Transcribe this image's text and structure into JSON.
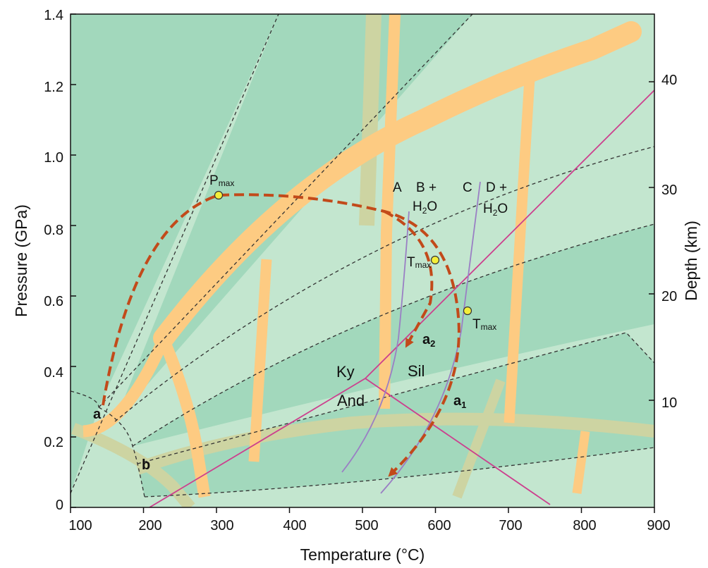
{
  "axes": {
    "x_title": "Temperature (°C)",
    "y_title": "Pressure (GPa)",
    "y2_title": "Depth (km)",
    "x_ticks": [
      "100",
      "200",
      "300",
      "400",
      "500",
      "600",
      "700",
      "800",
      "900"
    ],
    "y_ticks": [
      "0",
      "0.2",
      "0.4",
      "0.6",
      "0.8",
      "1.0",
      "1.2",
      "1.4"
    ],
    "y2_ticks": [
      "10",
      "20",
      "30",
      "40"
    ],
    "x_range": [
      100,
      900
    ],
    "y_range": [
      0,
      1.4
    ]
  },
  "labels": {
    "pmax_main": "P",
    "pmax_sub": "max",
    "tmax_main": "T",
    "tmax_sub": "max",
    "path_a": "a",
    "path_b": "b",
    "path_a1_main": "a",
    "path_a1_sub": "1",
    "path_a2_main": "a",
    "path_a2_sub": "2",
    "ky": "Ky",
    "and": "And",
    "sil": "Sil",
    "reaction_A": "A",
    "reaction_B": "B +",
    "reaction_C": "C",
    "reaction_D": "D +",
    "h2o_main": "H",
    "h2o_sub": "2",
    "h2o_tail": "O"
  },
  "colors": {
    "background": "#c3e6cf",
    "dark_band": "#a2d8bc",
    "orange": "#fdcb82",
    "olive": "#cdd4a2",
    "path": "#c24a1a",
    "magenta": "#cc3f8e",
    "purple": "#9a7fc4",
    "marker": "#f4ee3a"
  }
}
